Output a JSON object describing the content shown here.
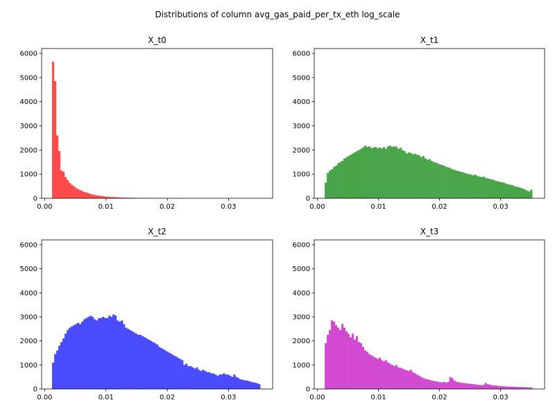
{
  "figure": {
    "title": "Distributions of column avg_gas_paid_per_tx_eth log_scale"
  },
  "chart_data": [
    {
      "type": "bar",
      "title": "X_t0",
      "color": "#ff0000",
      "xlim": [
        -0.0005,
        0.0372
      ],
      "ylim": [
        0,
        6200
      ],
      "xticks": [
        0.0,
        0.01,
        0.02,
        0.03
      ],
      "xtick_labels": [
        "0.00",
        "0.01",
        "0.02",
        "0.03"
      ],
      "yticks": [
        0,
        1000,
        2000,
        3000,
        4000,
        5000,
        6000
      ],
      "ytick_labels": [
        "0",
        "1000",
        "2000",
        "3000",
        "4000",
        "5000",
        "6000"
      ],
      "bin_start": 0.0012,
      "bin_width": 0.00034,
      "values": [
        5650,
        4850,
        2600,
        1950,
        1150,
        1100,
        880,
        750,
        640,
        560,
        500,
        430,
        380,
        340,
        300,
        260,
        240,
        210,
        180,
        160,
        140,
        120,
        110,
        95,
        85,
        75,
        70,
        60,
        55,
        50,
        45,
        40,
        35,
        32,
        30,
        28,
        25,
        22,
        20,
        20,
        18,
        16,
        15,
        14,
        13,
        12,
        11,
        10,
        10,
        9,
        8,
        8,
        7,
        7,
        6,
        6,
        5,
        5,
        5,
        4,
        4,
        4,
        3,
        3,
        3,
        3,
        2,
        2,
        2,
        2,
        2,
        2,
        2,
        1,
        1,
        1,
        1,
        1,
        1,
        1,
        1,
        1,
        1,
        1,
        1,
        1,
        1,
        1,
        1,
        1,
        1,
        1,
        1,
        1,
        1,
        1,
        1,
        1,
        1,
        1
      ]
    },
    {
      "type": "bar",
      "title": "X_t1",
      "color": "#008000",
      "xlim": [
        -0.0005,
        0.0372
      ],
      "ylim": [
        0,
        6200
      ],
      "xticks": [
        0.0,
        0.01,
        0.02,
        0.03
      ],
      "xtick_labels": [
        "0.00",
        "0.01",
        "0.02",
        "0.03"
      ],
      "yticks": [
        0,
        1000,
        2000,
        3000,
        4000,
        5000,
        6000
      ],
      "ytick_labels": [
        "0",
        "1000",
        "2000",
        "3000",
        "4000",
        "5000",
        "6000"
      ],
      "bin_start": 0.0012,
      "bin_width": 0.00034,
      "values": [
        650,
        1050,
        1150,
        1200,
        1300,
        1350,
        1450,
        1500,
        1550,
        1650,
        1700,
        1750,
        1800,
        1850,
        1900,
        1950,
        2000,
        2050,
        2100,
        2180,
        2120,
        2150,
        2080,
        2100,
        2120,
        2080,
        2100,
        2060,
        2120,
        2050,
        2150,
        2180,
        2130,
        2150,
        2140,
        2050,
        2100,
        2000,
        1950,
        1850,
        1900,
        1880,
        1820,
        1850,
        1800,
        1780,
        1700,
        1750,
        1650,
        1600,
        1620,
        1550,
        1500,
        1480,
        1450,
        1400,
        1380,
        1350,
        1300,
        1280,
        1250,
        1200,
        1180,
        1150,
        1120,
        1100,
        1080,
        1050,
        1020,
        1000,
        980,
        950,
        980,
        930,
        900,
        880,
        900,
        850,
        820,
        800,
        780,
        760,
        720,
        700,
        680,
        660,
        640,
        600,
        580,
        560,
        540,
        500,
        480,
        460,
        430,
        400,
        360,
        320,
        280,
        360
      ]
    },
    {
      "type": "bar",
      "title": "X_t2",
      "color": "#0000ff",
      "xlim": [
        -0.0005,
        0.0372
      ],
      "ylim": [
        0,
        6200
      ],
      "xticks": [
        0.0,
        0.01,
        0.02,
        0.03
      ],
      "xtick_labels": [
        "0.00",
        "0.01",
        "0.02",
        "0.03"
      ],
      "yticks": [
        0,
        1000,
        2000,
        3000,
        4000,
        5000,
        6000
      ],
      "ytick_labels": [
        "0",
        "1000",
        "2000",
        "3000",
        "4000",
        "5000",
        "6000"
      ],
      "bin_start": 0.0012,
      "bin_width": 0.00034,
      "values": [
        1100,
        1450,
        1600,
        1800,
        1950,
        2100,
        2300,
        2450,
        2550,
        2600,
        2650,
        2700,
        2750,
        2700,
        2800,
        2900,
        2950,
        3000,
        3050,
        3000,
        2900,
        2850,
        2950,
        2950,
        3000,
        2950,
        2950,
        3050,
        3000,
        3100,
        3050,
        2850,
        2800,
        2850,
        2700,
        2550,
        2500,
        2450,
        2400,
        2350,
        2300,
        2250,
        2250,
        2200,
        2150,
        2100,
        2050,
        2000,
        1950,
        1900,
        1850,
        1750,
        1700,
        1650,
        1600,
        1550,
        1500,
        1450,
        1400,
        1350,
        1300,
        1250,
        1200,
        1000,
        1050,
        950,
        950,
        900,
        850,
        900,
        800,
        750,
        800,
        750,
        700,
        700,
        650,
        650,
        600,
        550,
        600,
        600,
        650,
        600,
        600,
        550,
        500,
        600,
        500,
        450,
        400,
        380,
        360,
        350,
        330,
        300,
        280,
        260,
        240,
        200
      ]
    },
    {
      "type": "bar",
      "title": "X_t3",
      "color": "#bf00bf",
      "xlim": [
        -0.0005,
        0.0372
      ],
      "ylim": [
        0,
        6200
      ],
      "xticks": [
        0.0,
        0.01,
        0.02,
        0.03
      ],
      "xtick_labels": [
        "0.00",
        "0.01",
        "0.02",
        "0.03"
      ],
      "yticks": [
        0,
        1000,
        2000,
        3000,
        4000,
        5000,
        6000
      ],
      "ytick_labels": [
        "0",
        "1000",
        "2000",
        "3000",
        "4000",
        "5000",
        "6000"
      ],
      "bin_start": 0.0012,
      "bin_width": 0.00034,
      "values": [
        1900,
        2250,
        2450,
        2850,
        2800,
        2650,
        2550,
        2450,
        2700,
        2550,
        2400,
        2300,
        2150,
        2300,
        2050,
        2200,
        1950,
        1900,
        1750,
        1600,
        1550,
        1450,
        1400,
        1350,
        1300,
        1250,
        1300,
        1200,
        1150,
        1200,
        1100,
        1050,
        1000,
        950,
        1000,
        900,
        880,
        850,
        800,
        780,
        750,
        800,
        700,
        650,
        600,
        550,
        500,
        450,
        420,
        400,
        380,
        350,
        330,
        320,
        300,
        280,
        280,
        300,
        260,
        300,
        500,
        450,
        350,
        300,
        280,
        260,
        250,
        240,
        230,
        220,
        210,
        200,
        190,
        180,
        170,
        160,
        170,
        250,
        200,
        180,
        160,
        150,
        140,
        130,
        120,
        110,
        110,
        100,
        100,
        100,
        90,
        90,
        90,
        80,
        80,
        80,
        70,
        70,
        60,
        60
      ]
    }
  ]
}
